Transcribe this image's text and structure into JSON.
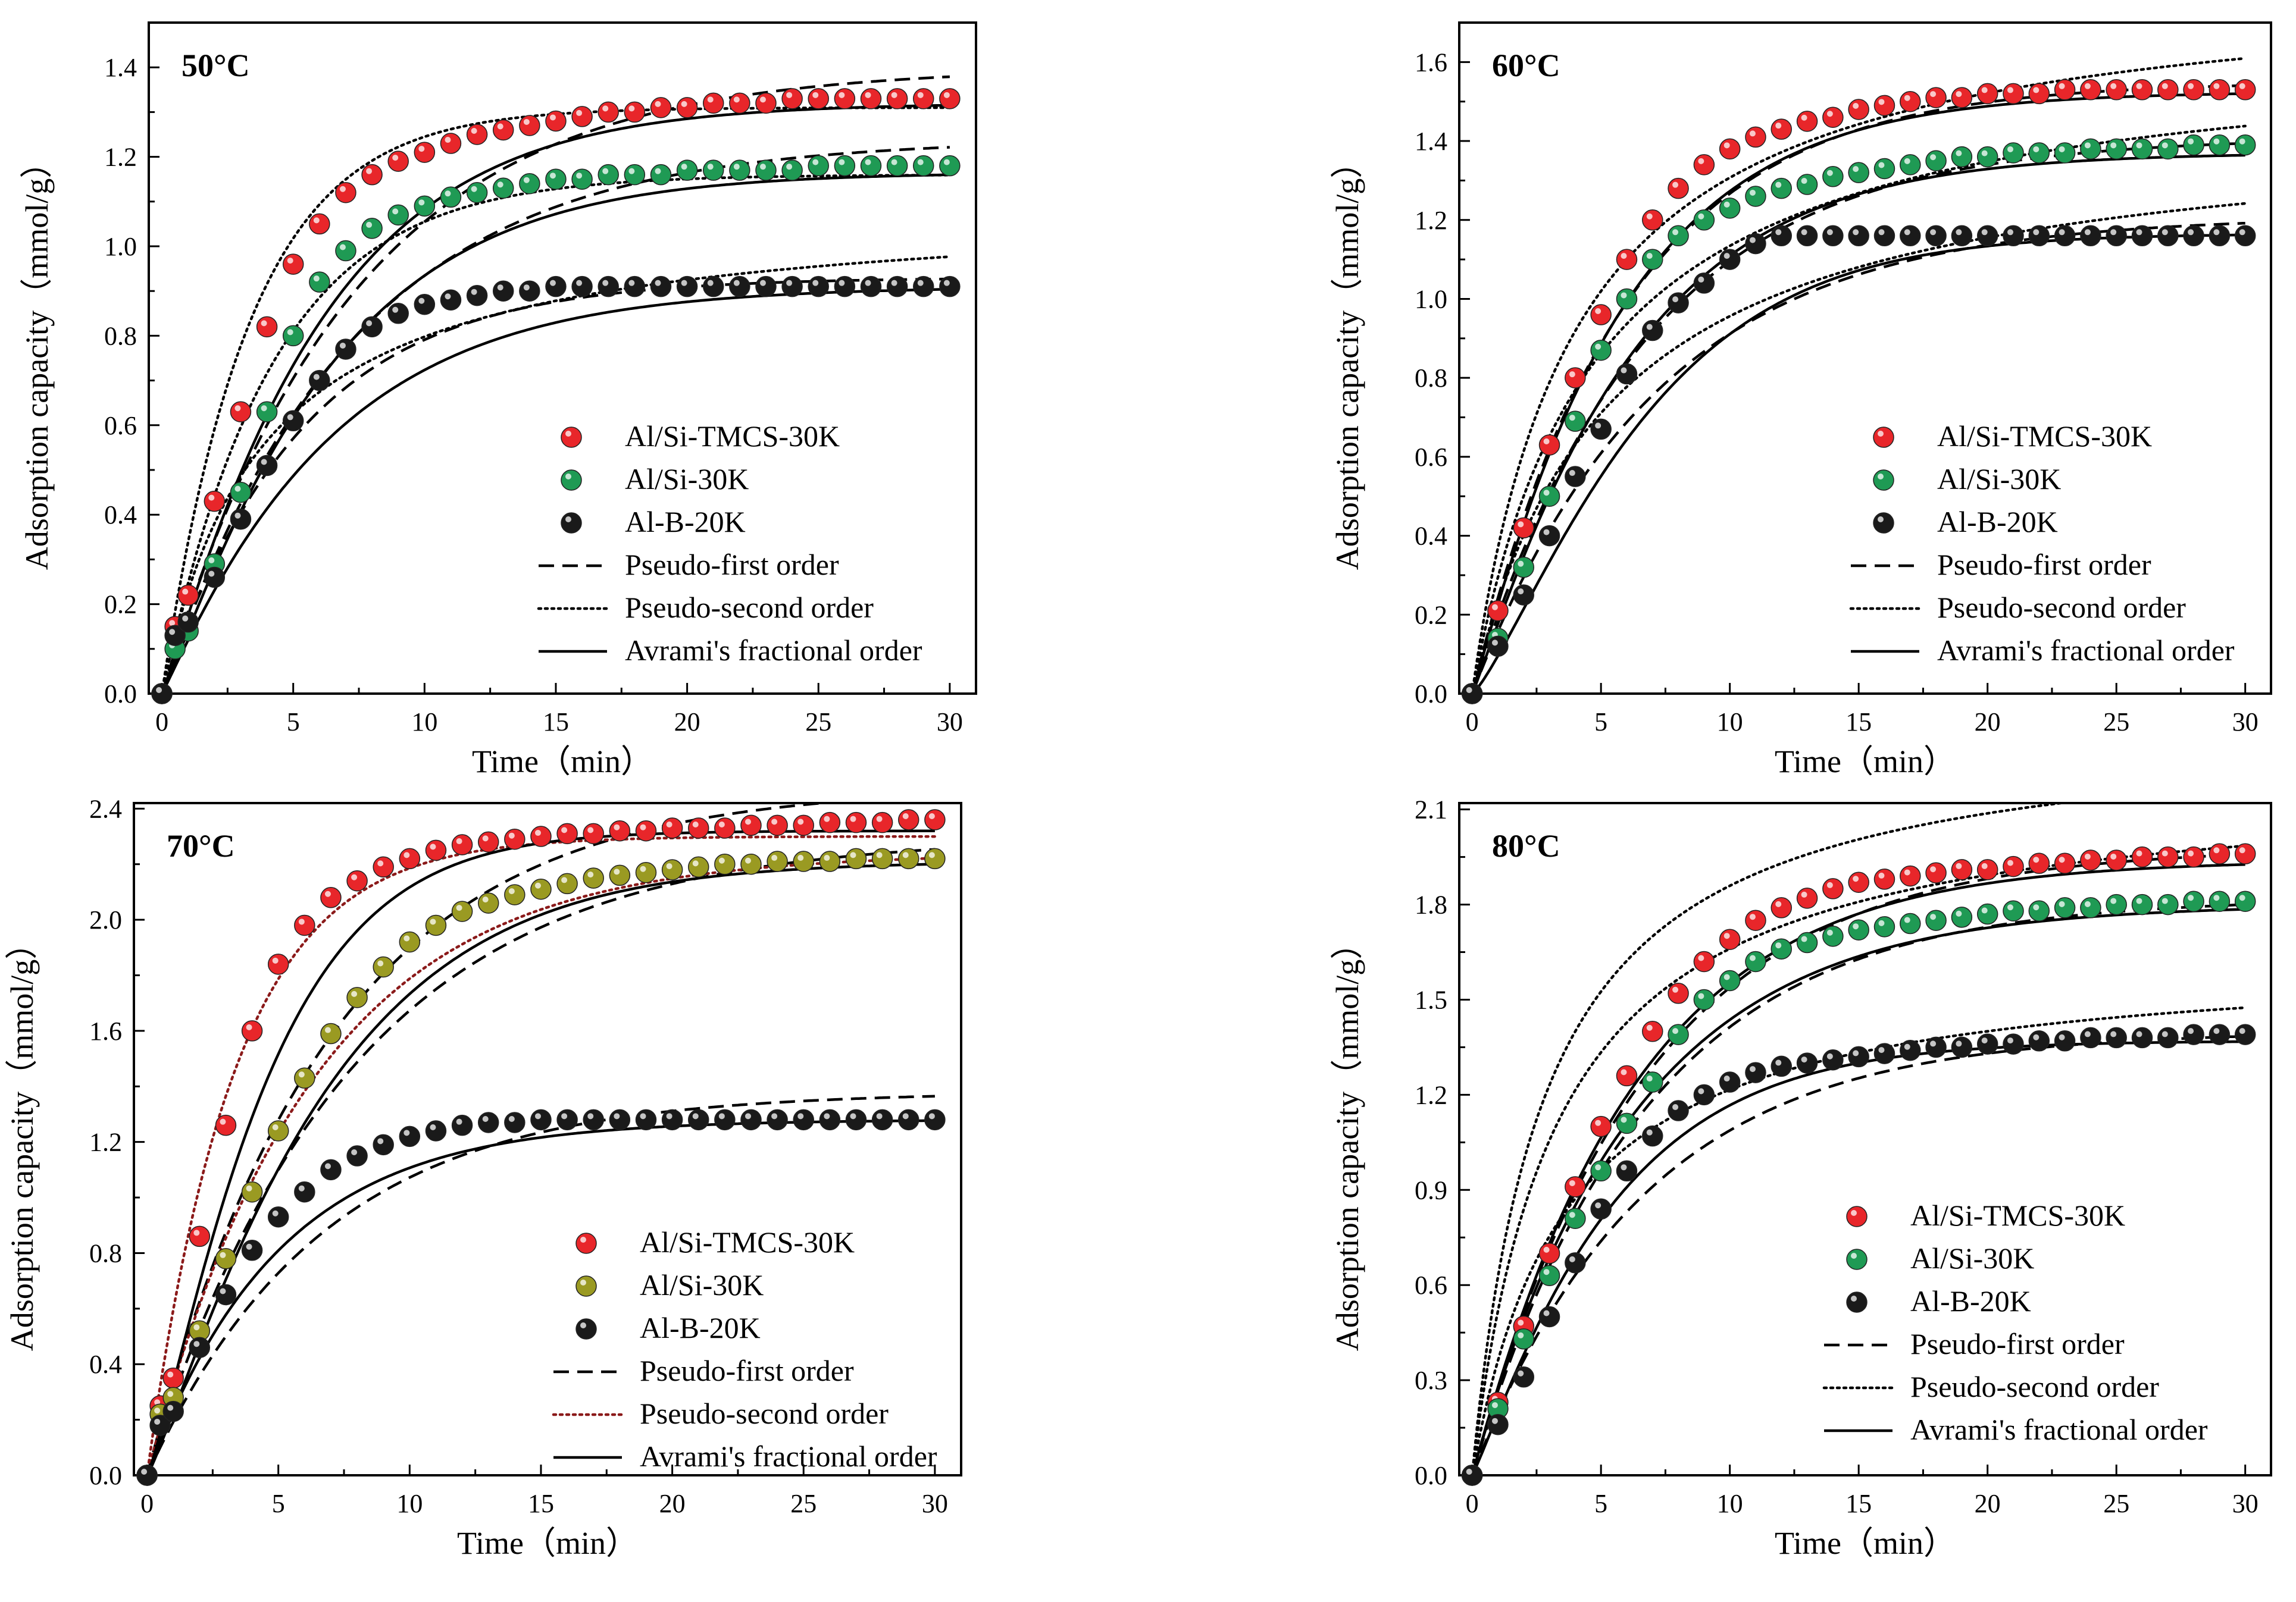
{
  "chart_data": [
    {
      "type": "scatter",
      "title": "50°C",
      "xlabel": "Time（min）",
      "ylabel": "Adsorption capacity（mmol/g）",
      "xlim": [
        -0.5,
        31
      ],
      "ylim": [
        0,
        1.5
      ],
      "xticks": [
        0,
        5,
        10,
        15,
        20,
        25,
        30
      ],
      "yticks": [
        0.0,
        0.2,
        0.4,
        0.6,
        0.8,
        1.0,
        1.2,
        1.4
      ],
      "ytick_format": 1,
      "grid": false,
      "legend_position": "bottom-right",
      "x": [
        0,
        0.5,
        1,
        2,
        3,
        4,
        5,
        6,
        7,
        8,
        9,
        10,
        11,
        12,
        13,
        14,
        15,
        16,
        17,
        18,
        19,
        20,
        21,
        22,
        23,
        24,
        25,
        26,
        27,
        28,
        29,
        30
      ],
      "series": [
        {
          "name": "Al/Si-TMCS-30K",
          "color": "#e8262a",
          "kind": "points",
          "values": [
            0,
            0.15,
            0.22,
            0.43,
            0.63,
            0.82,
            0.96,
            1.05,
            1.12,
            1.16,
            1.19,
            1.21,
            1.23,
            1.25,
            1.26,
            1.27,
            1.28,
            1.29,
            1.3,
            1.3,
            1.31,
            1.31,
            1.32,
            1.32,
            1.32,
            1.33,
            1.33,
            1.33,
            1.33,
            1.33,
            1.33,
            1.33
          ]
        },
        {
          "name": "Al/Si-30K",
          "color": "#1f9a54",
          "kind": "points",
          "values": [
            0,
            0.1,
            0.14,
            0.29,
            0.45,
            0.63,
            0.8,
            0.92,
            0.99,
            1.04,
            1.07,
            1.09,
            1.11,
            1.12,
            1.13,
            1.14,
            1.15,
            1.15,
            1.16,
            1.16,
            1.16,
            1.17,
            1.17,
            1.17,
            1.17,
            1.17,
            1.18,
            1.18,
            1.18,
            1.18,
            1.18,
            1.18
          ]
        },
        {
          "name": "Al-B-20K",
          "color": "#1a1a1a",
          "kind": "points",
          "values": [
            0,
            0.13,
            0.16,
            0.26,
            0.39,
            0.51,
            0.61,
            0.7,
            0.77,
            0.82,
            0.85,
            0.87,
            0.88,
            0.89,
            0.9,
            0.9,
            0.91,
            0.91,
            0.91,
            0.91,
            0.91,
            0.91,
            0.91,
            0.91,
            0.91,
            0.91,
            0.91,
            0.91,
            0.91,
            0.91,
            0.91,
            0.91
          ]
        },
        {
          "name": "Pseudo-first order",
          "color": "#000000",
          "kind": "dashed",
          "curves": [
            {
              "model": "pfo",
              "qe": 1.4,
              "k": 0.14
            },
            {
              "model": "pfo",
              "qe": 1.24,
              "k": 0.14
            },
            {
              "model": "pfo",
              "qe": 0.93,
              "k": 0.19
            }
          ]
        },
        {
          "name": "Pseudo-second order",
          "color": "#000000",
          "kind": "dotted",
          "curves": [
            {
              "model": "pfo",
              "qe": 1.31,
              "k": 0.3
            },
            {
              "model": "pfo",
              "qe": 1.16,
              "k": 0.24
            },
            {
              "model": "pso",
              "qe": 1.1,
              "k": 0.24
            }
          ]
        },
        {
          "name": "Avrami's fractional order",
          "color": "#000000",
          "kind": "solid",
          "curves": [
            {
              "model": "av",
              "qe": 1.32,
              "k": 0.165,
              "n": 1.08
            },
            {
              "model": "av",
              "qe": 1.165,
              "k": 0.155,
              "n": 1.1
            },
            {
              "model": "av",
              "qe": 0.91,
              "k": 0.155,
              "n": 1.05
            }
          ]
        }
      ]
    },
    {
      "type": "scatter",
      "title": "60°C",
      "xlabel": "Time（min）",
      "ylabel": "Adsorption capacity（mmol/g）",
      "xlim": [
        -0.5,
        31
      ],
      "ylim": [
        0,
        1.7
      ],
      "xticks": [
        0,
        5,
        10,
        15,
        20,
        25,
        30
      ],
      "yticks": [
        0.0,
        0.2,
        0.4,
        0.6,
        0.8,
        1.0,
        1.2,
        1.4,
        1.6
      ],
      "ytick_format": 1,
      "grid": false,
      "legend_position": "bottom-right",
      "x": [
        0,
        1,
        2,
        3,
        4,
        5,
        6,
        7,
        8,
        9,
        10,
        11,
        12,
        13,
        14,
        15,
        16,
        17,
        18,
        19,
        20,
        21,
        22,
        23,
        24,
        25,
        26,
        27,
        28,
        29,
        30
      ],
      "series": [
        {
          "name": "Al/Si-TMCS-30K",
          "color": "#e8262a",
          "kind": "points",
          "values": [
            0,
            0.21,
            0.42,
            0.63,
            0.8,
            0.96,
            1.1,
            1.2,
            1.28,
            1.34,
            1.38,
            1.41,
            1.43,
            1.45,
            1.46,
            1.48,
            1.49,
            1.5,
            1.51,
            1.51,
            1.52,
            1.52,
            1.52,
            1.53,
            1.53,
            1.53,
            1.53,
            1.53,
            1.53,
            1.53,
            1.53
          ]
        },
        {
          "name": "Al/Si-30K",
          "color": "#1f9a54",
          "kind": "points",
          "values": [
            0,
            0.14,
            0.32,
            0.5,
            0.69,
            0.87,
            1.0,
            1.1,
            1.16,
            1.2,
            1.23,
            1.26,
            1.28,
            1.29,
            1.31,
            1.32,
            1.33,
            1.34,
            1.35,
            1.36,
            1.36,
            1.37,
            1.37,
            1.37,
            1.38,
            1.38,
            1.38,
            1.38,
            1.39,
            1.39,
            1.39
          ]
        },
        {
          "name": "Al-B-20K",
          "color": "#1a1a1a",
          "kind": "points",
          "values": [
            0,
            0.12,
            0.25,
            0.4,
            0.55,
            0.67,
            0.81,
            0.92,
            0.99,
            1.04,
            1.1,
            1.14,
            1.16,
            1.16,
            1.16,
            1.16,
            1.16,
            1.16,
            1.16,
            1.16,
            1.16,
            1.16,
            1.16,
            1.16,
            1.16,
            1.16,
            1.16,
            1.16,
            1.16,
            1.16,
            1.16
          ]
        },
        {
          "name": "Pseudo-first order",
          "color": "#000000",
          "kind": "dashed",
          "curves": [
            {
              "model": "pfo",
              "qe": 1.55,
              "k": 0.17
            },
            {
              "model": "pfo",
              "qe": 1.41,
              "k": 0.15
            },
            {
              "model": "pfo",
              "qe": 1.21,
              "k": 0.14
            }
          ]
        },
        {
          "name": "Pseudo-second order",
          "color": "#000000",
          "kind": "dotted",
          "curves": [
            {
              "model": "pso",
              "qe": 1.82,
              "k": 0.14
            },
            {
              "model": "pso",
              "qe": 1.66,
              "k": 0.13
            },
            {
              "model": "pso",
              "qe": 1.46,
              "k": 0.13
            }
          ]
        },
        {
          "name": "Avrami's fractional order",
          "color": "#000000",
          "kind": "solid",
          "curves": [
            {
              "model": "av",
              "qe": 1.525,
              "k": 0.175,
              "n": 1.05
            },
            {
              "model": "av",
              "qe": 1.37,
              "k": 0.16,
              "n": 1.08
            },
            {
              "model": "av",
              "qe": 1.165,
              "k": 0.14,
              "n": 1.25
            }
          ]
        }
      ]
    },
    {
      "type": "scatter",
      "title": "70°C",
      "xlabel": "Time（min）",
      "ylabel": "Adsorption capacity（mmol/g）",
      "xlim": [
        -0.5,
        31
      ],
      "ylim": [
        0,
        2.42
      ],
      "xticks": [
        0,
        5,
        10,
        15,
        20,
        25,
        30
      ],
      "yticks": [
        0.0,
        0.4,
        0.8,
        1.2,
        1.6,
        2.0,
        2.4
      ],
      "ytick_format": 1,
      "grid": false,
      "legend_position": "bottom-right",
      "x": [
        0,
        0.5,
        1,
        2,
        3,
        4,
        5,
        6,
        7,
        8,
        9,
        10,
        11,
        12,
        13,
        14,
        15,
        16,
        17,
        18,
        19,
        20,
        21,
        22,
        23,
        24,
        25,
        26,
        27,
        28,
        29,
        30
      ],
      "series": [
        {
          "name": "Al/Si-TMCS-30K",
          "color": "#e8262a",
          "kind": "points",
          "values": [
            0,
            0.25,
            0.35,
            0.86,
            1.26,
            1.6,
            1.84,
            1.98,
            2.08,
            2.14,
            2.19,
            2.22,
            2.25,
            2.27,
            2.28,
            2.29,
            2.3,
            2.31,
            2.31,
            2.32,
            2.32,
            2.33,
            2.33,
            2.33,
            2.34,
            2.34,
            2.34,
            2.35,
            2.35,
            2.35,
            2.36,
            2.36
          ]
        },
        {
          "name": "Al/Si-30K",
          "color": "#9a9a22",
          "kind": "points",
          "values": [
            0,
            0.22,
            0.28,
            0.52,
            0.78,
            1.02,
            1.24,
            1.43,
            1.59,
            1.72,
            1.83,
            1.92,
            1.98,
            2.03,
            2.06,
            2.09,
            2.11,
            2.13,
            2.15,
            2.16,
            2.17,
            2.18,
            2.19,
            2.2,
            2.2,
            2.21,
            2.21,
            2.21,
            2.22,
            2.22,
            2.22,
            2.22
          ]
        },
        {
          "name": "Al-B-20K",
          "color": "#1a1a1a",
          "kind": "points",
          "values": [
            0,
            0.18,
            0.23,
            0.46,
            0.65,
            0.81,
            0.93,
            1.02,
            1.1,
            1.15,
            1.19,
            1.22,
            1.24,
            1.26,
            1.27,
            1.27,
            1.28,
            1.28,
            1.28,
            1.28,
            1.28,
            1.28,
            1.28,
            1.28,
            1.28,
            1.28,
            1.28,
            1.28,
            1.28,
            1.28,
            1.28,
            1.28
          ]
        },
        {
          "name": "Pseudo-first order",
          "color": "#000000",
          "kind": "dashed",
          "curves": [
            {
              "model": "pfo",
              "qe": 2.48,
              "k": 0.145
            },
            {
              "model": "pfo",
              "qe": 2.3,
              "k": 0.13
            },
            {
              "model": "pfo",
              "qe": 1.38,
              "k": 0.15
            }
          ]
        },
        {
          "name": "Pseudo-second order",
          "color": "#8b1a1a",
          "kind": "dotted",
          "curves": [
            {
              "model": "pfo",
              "qe": 2.3,
              "k": 0.3
            },
            {
              "model": "pfo",
              "qe": 2.24,
              "k": 0.16
            }
          ]
        },
        {
          "name": "Avrami's fractional order",
          "color": "#000000",
          "kind": "solid",
          "curves": [
            {
              "model": "av",
              "qe": 2.32,
              "k": 0.21,
              "n": 1.2
            },
            {
              "model": "av",
              "qe": 2.21,
              "k": 0.145,
              "n": 1.15
            },
            {
              "model": "av",
              "qe": 1.28,
              "k": 0.2,
              "n": 1.0
            }
          ]
        }
      ]
    },
    {
      "type": "scatter",
      "title": "80°C",
      "xlabel": "Time（min）",
      "ylabel": "Adsorption capacity（mmol/g）",
      "xlim": [
        -0.5,
        31
      ],
      "ylim": [
        0,
        2.12
      ],
      "xticks": [
        0,
        5,
        10,
        15,
        20,
        25,
        30
      ],
      "yticks": [
        0.0,
        0.3,
        0.6,
        0.9,
        1.2,
        1.5,
        1.8,
        2.1
      ],
      "ytick_format": 1,
      "grid": false,
      "legend_position": "bottom-right",
      "x": [
        0,
        1,
        2,
        3,
        4,
        5,
        6,
        7,
        8,
        9,
        10,
        11,
        12,
        13,
        14,
        15,
        16,
        17,
        18,
        19,
        20,
        21,
        22,
        23,
        24,
        25,
        26,
        27,
        28,
        29,
        30
      ],
      "series": [
        {
          "name": "Al/Si-TMCS-30K",
          "color": "#e8262a",
          "kind": "points",
          "values": [
            0,
            0.23,
            0.47,
            0.7,
            0.91,
            1.1,
            1.26,
            1.4,
            1.52,
            1.62,
            1.69,
            1.75,
            1.79,
            1.82,
            1.85,
            1.87,
            1.88,
            1.89,
            1.9,
            1.91,
            1.91,
            1.92,
            1.93,
            1.93,
            1.94,
            1.94,
            1.95,
            1.95,
            1.95,
            1.96,
            1.96
          ]
        },
        {
          "name": "Al/Si-30K",
          "color": "#1f9a54",
          "kind": "points",
          "values": [
            0,
            0.21,
            0.43,
            0.63,
            0.81,
            0.96,
            1.11,
            1.24,
            1.39,
            1.5,
            1.56,
            1.62,
            1.66,
            1.68,
            1.7,
            1.72,
            1.73,
            1.74,
            1.75,
            1.76,
            1.77,
            1.78,
            1.78,
            1.79,
            1.79,
            1.8,
            1.8,
            1.8,
            1.81,
            1.81,
            1.81
          ]
        },
        {
          "name": "Al-B-20K",
          "color": "#1a1a1a",
          "kind": "points",
          "values": [
            0,
            0.16,
            0.31,
            0.5,
            0.67,
            0.84,
            0.96,
            1.07,
            1.15,
            1.2,
            1.24,
            1.27,
            1.29,
            1.3,
            1.31,
            1.32,
            1.33,
            1.34,
            1.35,
            1.35,
            1.36,
            1.36,
            1.37,
            1.37,
            1.38,
            1.38,
            1.38,
            1.38,
            1.39,
            1.39,
            1.39
          ]
        },
        {
          "name": "Pseudo-first order",
          "color": "#000000",
          "kind": "dashed",
          "curves": [
            {
              "model": "pfo",
              "qe": 1.98,
              "k": 0.15
            },
            {
              "model": "pfo",
              "qe": 1.82,
              "k": 0.15
            },
            {
              "model": "pfo",
              "qe": 1.4,
              "k": 0.15
            }
          ]
        },
        {
          "name": "Pseudo-second order",
          "color": "#000000",
          "kind": "dotted",
          "curves": [
            {
              "model": "pso",
              "qe": 2.38,
              "k": 0.15
            },
            {
              "model": "pso",
              "qe": 2.2,
              "k": 0.14
            },
            {
              "model": "pso",
              "qe": 1.65,
              "k": 0.17
            }
          ]
        },
        {
          "name": "Avrami's fractional order",
          "color": "#000000",
          "kind": "solid",
          "curves": [
            {
              "model": "av",
              "qe": 1.94,
              "k": 0.16,
              "n": 1.02
            },
            {
              "model": "av",
              "qe": 1.8,
              "k": 0.16,
              "n": 1.0
            },
            {
              "model": "av",
              "qe": 1.37,
              "k": 0.18,
              "n": 1.1
            }
          ]
        }
      ]
    }
  ]
}
